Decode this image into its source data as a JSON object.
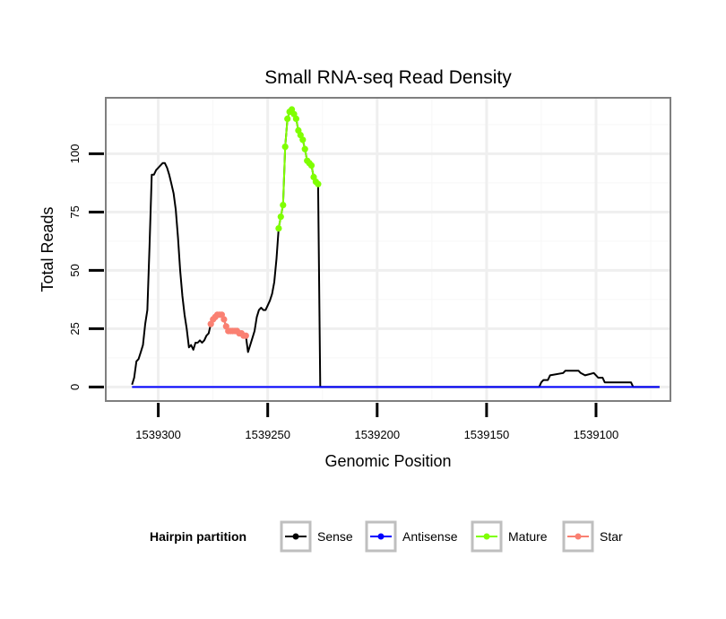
{
  "chart_data": {
    "type": "line",
    "title": "Small RNA-seq Read Density",
    "xlabel": "Genomic Position",
    "ylabel": "Total Reads",
    "x_reversed": true,
    "xlim": [
      1539324,
      1539066
    ],
    "ylim": [
      -6,
      124
    ],
    "x_ticks": [
      1539300,
      1539250,
      1539200,
      1539150,
      1539100
    ],
    "x_tick_labels": [
      "1539300",
      "1539250",
      "1539200",
      "1539150",
      "1539100"
    ],
    "y_ticks": [
      0,
      25,
      50,
      75,
      100
    ],
    "y_tick_labels": [
      "0",
      "25",
      "50",
      "75",
      "100"
    ],
    "grid": true,
    "legend_placement": "bottom",
    "legend": {
      "title": "Hairpin partition",
      "entries": [
        {
          "label": "Sense",
          "color": "#000000"
        },
        {
          "label": "Antisense",
          "color": "#0000ff"
        },
        {
          "label": "Mature",
          "color": "#7fff00"
        },
        {
          "label": "Star",
          "color": "#fa8072"
        }
      ]
    },
    "series": [
      {
        "name": "Sense",
        "color": "#000000",
        "points": [
          [
            1539312,
            1
          ],
          [
            1539311,
            4
          ],
          [
            1539310,
            11
          ],
          [
            1539309,
            12
          ],
          [
            1539308,
            15
          ],
          [
            1539307,
            18
          ],
          [
            1539306,
            27
          ],
          [
            1539305,
            33
          ],
          [
            1539304,
            60
          ],
          [
            1539303,
            91
          ],
          [
            1539302,
            91
          ],
          [
            1539301,
            93
          ],
          [
            1539300,
            94
          ],
          [
            1539299,
            95
          ],
          [
            1539298,
            96
          ],
          [
            1539297,
            96
          ],
          [
            1539296,
            94
          ],
          [
            1539295,
            91
          ],
          [
            1539294,
            87
          ],
          [
            1539293,
            83
          ],
          [
            1539292,
            76
          ],
          [
            1539291,
            64
          ],
          [
            1539290,
            50
          ],
          [
            1539289,
            39
          ],
          [
            1539288,
            31
          ],
          [
            1539287,
            25
          ],
          [
            1539286,
            17
          ],
          [
            1539285,
            18
          ],
          [
            1539284,
            16
          ],
          [
            1539283,
            19
          ],
          [
            1539282,
            19
          ],
          [
            1539281,
            20
          ],
          [
            1539280,
            19
          ],
          [
            1539279,
            20
          ],
          [
            1539278,
            22
          ],
          [
            1539277,
            23
          ],
          [
            1539276,
            27
          ],
          [
            1539275,
            29
          ],
          [
            1539274,
            30
          ],
          [
            1539273,
            31
          ],
          [
            1539272,
            31
          ],
          [
            1539271,
            31
          ],
          [
            1539270,
            29
          ],
          [
            1539269,
            26
          ],
          [
            1539268,
            24
          ],
          [
            1539267,
            24
          ],
          [
            1539266,
            24
          ],
          [
            1539265,
            24
          ],
          [
            1539264,
            24
          ],
          [
            1539263,
            23
          ],
          [
            1539262,
            23
          ],
          [
            1539261,
            22
          ],
          [
            1539260,
            22
          ],
          [
            1539259,
            15
          ],
          [
            1539258,
            18
          ],
          [
            1539257,
            21
          ],
          [
            1539256,
            24
          ],
          [
            1539255,
            30
          ],
          [
            1539254,
            33
          ],
          [
            1539253,
            34
          ],
          [
            1539252,
            33
          ],
          [
            1539251,
            33
          ],
          [
            1539250,
            35
          ],
          [
            1539249,
            37
          ],
          [
            1539248,
            40
          ],
          [
            1539247,
            45
          ],
          [
            1539246,
            55
          ],
          [
            1539245,
            68
          ],
          [
            1539244,
            73
          ],
          [
            1539243,
            78
          ],
          [
            1539242,
            103
          ],
          [
            1539241,
            115
          ],
          [
            1539240,
            118
          ],
          [
            1539239,
            119
          ],
          [
            1539238,
            117
          ],
          [
            1539237,
            115
          ],
          [
            1539236,
            110
          ],
          [
            1539235,
            108
          ],
          [
            1539234,
            106
          ],
          [
            1539233,
            102
          ],
          [
            1539232,
            97
          ],
          [
            1539231,
            96
          ],
          [
            1539230,
            95
          ],
          [
            1539229,
            90
          ],
          [
            1539228,
            88
          ],
          [
            1539227,
            87
          ],
          [
            1539226,
            0
          ],
          [
            1539225,
            0
          ],
          [
            1539200,
            0
          ],
          [
            1539150,
            0
          ],
          [
            1539126,
            0
          ],
          [
            1539125,
            2
          ],
          [
            1539124,
            3
          ],
          [
            1539122,
            3
          ],
          [
            1539121,
            5
          ],
          [
            1539115,
            6
          ],
          [
            1539114,
            7
          ],
          [
            1539108,
            7
          ],
          [
            1539107,
            6
          ],
          [
            1539105,
            5
          ],
          [
            1539101,
            6
          ],
          [
            1539100,
            5
          ],
          [
            1539099,
            4
          ],
          [
            1539097,
            4
          ],
          [
            1539096,
            2
          ],
          [
            1539084,
            2
          ],
          [
            1539083,
            0
          ],
          [
            1539071,
            0
          ]
        ],
        "markers": false
      },
      {
        "name": "Antisense",
        "color": "#0000ff",
        "points": [
          [
            1539312,
            0
          ],
          [
            1539071,
            0
          ]
        ],
        "markers": false
      },
      {
        "name": "Mature",
        "color": "#7fff00",
        "points": [
          [
            1539245,
            68
          ],
          [
            1539244,
            73
          ],
          [
            1539243,
            78
          ],
          [
            1539242,
            103
          ],
          [
            1539241,
            115
          ],
          [
            1539240,
            118
          ],
          [
            1539239,
            119
          ],
          [
            1539238,
            117
          ],
          [
            1539237,
            115
          ],
          [
            1539236,
            110
          ],
          [
            1539235,
            108
          ],
          [
            1539234,
            106
          ],
          [
            1539233,
            102
          ],
          [
            1539232,
            97
          ],
          [
            1539231,
            96
          ],
          [
            1539230,
            95
          ],
          [
            1539229,
            90
          ],
          [
            1539228,
            88
          ],
          [
            1539227,
            87
          ]
        ],
        "markers": true
      },
      {
        "name": "Star",
        "color": "#fa8072",
        "points": [
          [
            1539276,
            27
          ],
          [
            1539275,
            29
          ],
          [
            1539274,
            30
          ],
          [
            1539273,
            31
          ],
          [
            1539272,
            31
          ],
          [
            1539271,
            31
          ],
          [
            1539270,
            29
          ],
          [
            1539269,
            26
          ],
          [
            1539268,
            24
          ],
          [
            1539267,
            24
          ],
          [
            1539266,
            24
          ],
          [
            1539265,
            24
          ],
          [
            1539264,
            24
          ],
          [
            1539263,
            23
          ],
          [
            1539262,
            23
          ],
          [
            1539261,
            22
          ],
          [
            1539260,
            22
          ]
        ],
        "markers": true
      }
    ]
  }
}
